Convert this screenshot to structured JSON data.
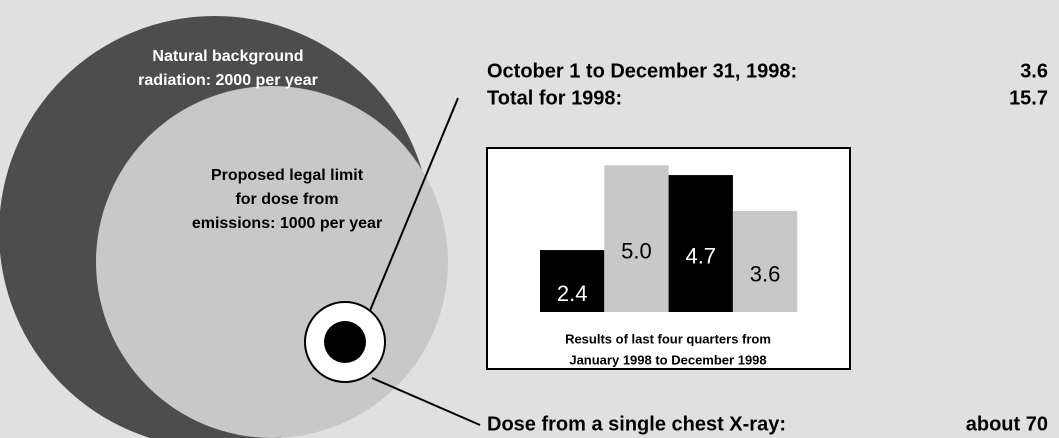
{
  "background": {
    "lines": [
      "Natural background",
      "radiation: 2000 per year"
    ]
  },
  "limit": {
    "lines": [
      "Proposed legal limit",
      "for dose from",
      "emissions: 1000 per year"
    ]
  },
  "quarter": {
    "label": "October 1 to December 31, 1998:",
    "value": "3.6"
  },
  "total": {
    "label": "Total for 1998:",
    "value": "15.7"
  },
  "xray": {
    "label": "Dose from a single chest X-ray:",
    "value": "about 70"
  },
  "chart_data": {
    "type": "bar",
    "categories": [
      null,
      null,
      null,
      null
    ],
    "values": [
      2.4,
      5.0,
      4.7,
      3.6
    ],
    "value_labels": [
      "2.4",
      "5.0",
      "4.7",
      "3.6"
    ],
    "colors": [
      "#000000",
      "#c8c8c8",
      "#000000",
      "#c8c8c8"
    ],
    "ylim": [
      0.5,
      5.5
    ],
    "caption": [
      "Results of last four quarters from",
      "January 1998 to December 1998"
    ]
  }
}
